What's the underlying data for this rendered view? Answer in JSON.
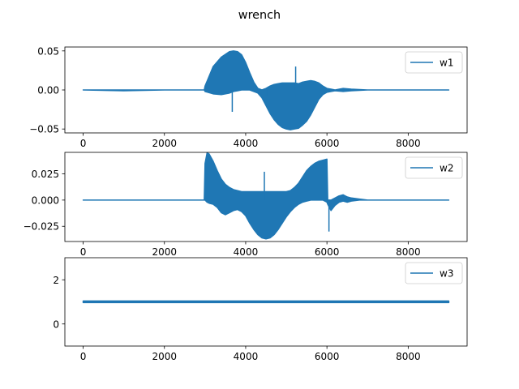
{
  "figure": {
    "title": "wrench"
  },
  "chart_data": [
    {
      "type": "line",
      "title": "",
      "xlabel": "",
      "ylabel": "",
      "xlim": [
        -450,
        9450
      ],
      "ylim": [
        -0.055,
        0.055
      ],
      "xticks": [
        0,
        2000,
        4000,
        6000,
        8000
      ],
      "xtick_labels": [
        "0",
        "2000",
        "4000",
        "6000",
        "8000"
      ],
      "yticks": [
        -0.05,
        0.0,
        0.05
      ],
      "ytick_labels": [
        "−0.05",
        "0.00",
        "0.05"
      ],
      "grid": false,
      "legend": {
        "position": "top-right",
        "entries": [
          "w1"
        ]
      },
      "color": "#1f77b4",
      "series": [
        {
          "name": "w1",
          "x": [
            0,
            1000,
            2000,
            2980,
            3000,
            3200,
            3400,
            3600,
            3700,
            3800,
            3900,
            4000,
            4100,
            4200,
            4300,
            4400,
            4500,
            4600,
            4700,
            4800,
            4900,
            5000,
            5100,
            5200,
            5300,
            5400,
            5500,
            5600,
            5700,
            5800,
            5900,
            6000,
            6100,
            6200,
            6400,
            6600,
            7000,
            8000,
            9000
          ],
          "upper": [
            0.0,
            0.0,
            0.0,
            0.0,
            0.005,
            0.03,
            0.042,
            0.049,
            0.05,
            0.049,
            0.045,
            0.035,
            0.022,
            0.01,
            0.002,
            0.0,
            0.002,
            0.005,
            0.007,
            0.008,
            0.009,
            0.009,
            0.009,
            0.009,
            0.008,
            0.01,
            0.011,
            0.012,
            0.011,
            0.009,
            0.005,
            0.002,
            0.001,
            0.0,
            0.002,
            0.001,
            0.0,
            0.0,
            0.0
          ],
          "lower": [
            0.0,
            -0.001,
            0.0,
            0.0,
            -0.002,
            -0.005,
            -0.006,
            -0.004,
            -0.002,
            -0.001,
            0.0,
            0.0,
            0.0,
            -0.002,
            -0.004,
            -0.01,
            -0.02,
            -0.03,
            -0.038,
            -0.044,
            -0.048,
            -0.05,
            -0.051,
            -0.05,
            -0.049,
            -0.045,
            -0.04,
            -0.032,
            -0.022,
            -0.012,
            -0.006,
            -0.003,
            -0.002,
            -0.001,
            -0.002,
            -0.001,
            0.0,
            0.0,
            0.0
          ],
          "spikes": [
            {
              "x": 3670,
              "low": -0.028,
              "high": 0.0
            },
            {
              "x": 4520,
              "low": -0.008,
              "high": 0.0
            },
            {
              "x": 5230,
              "low": 0.0,
              "high": 0.03
            }
          ]
        }
      ]
    },
    {
      "type": "line",
      "title": "",
      "xlabel": "",
      "ylabel": "",
      "xlim": [
        -450,
        9450
      ],
      "ylim": [
        -0.0395,
        0.0455
      ],
      "xticks": [
        0,
        2000,
        4000,
        6000,
        8000
      ],
      "xtick_labels": [
        "0",
        "2000",
        "4000",
        "6000",
        "8000"
      ],
      "yticks": [
        -0.025,
        0.0,
        0.025
      ],
      "ytick_labels": [
        "−0.025",
        "0.000",
        "0.025"
      ],
      "grid": false,
      "legend": {
        "position": "top-right",
        "entries": [
          "w2"
        ]
      },
      "color": "#1f77b4",
      "series": [
        {
          "name": "w2",
          "x": [
            0,
            1000,
            2000,
            2980,
            3000,
            3050,
            3100,
            3200,
            3300,
            3400,
            3500,
            3600,
            3700,
            3800,
            3900,
            4000,
            4100,
            4200,
            4300,
            4400,
            4500,
            4600,
            4700,
            4800,
            4900,
            5000,
            5100,
            5200,
            5300,
            5400,
            5500,
            5600,
            5700,
            5800,
            5900,
            6000,
            6020,
            6100,
            6200,
            6300,
            6400,
            6500,
            6600,
            6800,
            7000,
            8000,
            9000
          ],
          "upper": [
            0.0,
            0.0,
            0.0,
            0.0,
            0.035,
            0.045,
            0.044,
            0.037,
            0.028,
            0.02,
            0.015,
            0.012,
            0.01,
            0.009,
            0.008,
            0.008,
            0.008,
            0.008,
            0.008,
            0.008,
            0.008,
            0.008,
            0.008,
            0.008,
            0.008,
            0.008,
            0.009,
            0.012,
            0.016,
            0.022,
            0.028,
            0.032,
            0.035,
            0.037,
            0.038,
            0.039,
            0.0,
            0.0,
            0.002,
            0.004,
            0.005,
            0.003,
            0.002,
            0.001,
            0.0,
            0.0,
            0.0
          ],
          "lower": [
            0.0,
            0.0,
            0.0,
            0.0,
            0.0,
            -0.002,
            -0.003,
            -0.004,
            -0.007,
            -0.012,
            -0.014,
            -0.012,
            -0.01,
            -0.009,
            -0.011,
            -0.015,
            -0.022,
            -0.028,
            -0.033,
            -0.036,
            -0.037,
            -0.036,
            -0.033,
            -0.028,
            -0.022,
            -0.016,
            -0.011,
            -0.007,
            -0.004,
            -0.002,
            -0.001,
            0.0,
            0.0,
            0.0,
            0.0,
            -0.002,
            -0.004,
            -0.01,
            -0.005,
            -0.002,
            -0.001,
            -0.002,
            -0.001,
            0.0,
            0.0,
            0.0,
            0.0
          ],
          "spikes": [
            {
              "x": 4460,
              "low": 0.0,
              "high": 0.027
            },
            {
              "x": 6050,
              "low": -0.03,
              "high": 0.0
            }
          ]
        }
      ]
    },
    {
      "type": "line",
      "title": "",
      "xlabel": "",
      "ylabel": "",
      "xlim": [
        -450,
        9450
      ],
      "ylim": [
        -1.0,
        3.0
      ],
      "xticks": [
        0,
        2000,
        4000,
        6000,
        8000
      ],
      "xtick_labels": [
        "0",
        "2000",
        "4000",
        "6000",
        "8000"
      ],
      "yticks": [
        0,
        2
      ],
      "ytick_labels": [
        "0",
        "2"
      ],
      "grid": false,
      "legend": {
        "position": "top-right",
        "entries": [
          "w3"
        ]
      },
      "color": "#1f77b4",
      "series": [
        {
          "name": "w3",
          "x": [
            0,
            1000,
            2000,
            3000,
            4000,
            5000,
            6000,
            7000,
            8000,
            9000
          ],
          "upper": [
            1.04,
            1.04,
            1.04,
            1.04,
            1.04,
            1.04,
            1.04,
            1.04,
            1.04,
            1.04
          ],
          "lower": [
            0.97,
            0.97,
            0.97,
            0.97,
            0.97,
            0.97,
            0.97,
            0.97,
            0.97,
            0.97
          ],
          "spikes": []
        }
      ]
    }
  ]
}
